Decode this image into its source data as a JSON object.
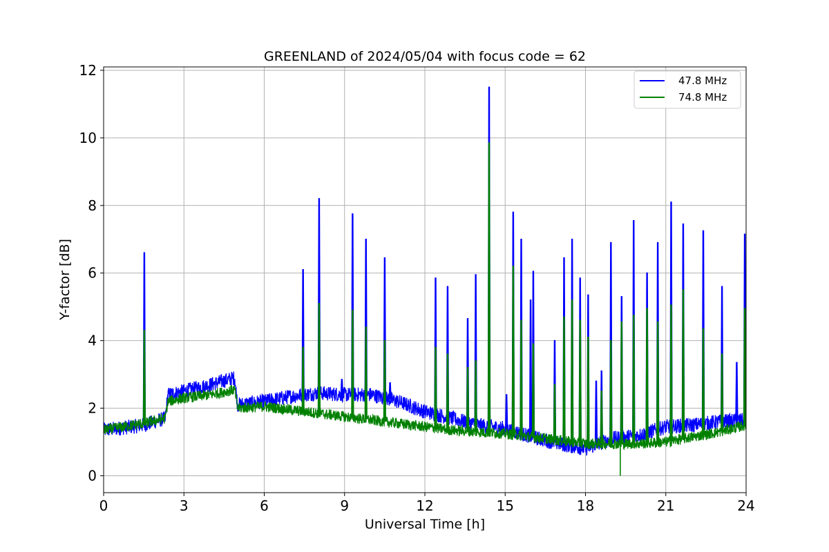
{
  "chart_data": {
    "type": "line",
    "title": "GREENLAND of 2024/05/04 with focus code = 62",
    "xlabel": "Universal Time [h]",
    "ylabel": "Y-factor [dB]",
    "xlim": [
      0,
      24
    ],
    "ylim": [
      -0.5,
      12.1
    ],
    "xticks": [
      "0",
      "3",
      "6",
      "9",
      "12",
      "15",
      "18",
      "21",
      "24"
    ],
    "yticks": [
      "0",
      "2",
      "4",
      "6",
      "8",
      "10",
      "12"
    ],
    "grid": true,
    "legend_position": "top-right",
    "series": [
      {
        "name": "47.8 MHz",
        "color": "#0000ff",
        "baseline": [
          [
            0,
            1.35
          ],
          [
            1.5,
            1.5
          ],
          [
            2.3,
            1.7
          ],
          [
            2.4,
            2.4
          ],
          [
            3,
            2.5
          ],
          [
            4,
            2.7
          ],
          [
            4.9,
            2.9
          ],
          [
            5.0,
            2.1
          ],
          [
            6,
            2.2
          ],
          [
            7,
            2.35
          ],
          [
            8,
            2.45
          ],
          [
            9,
            2.4
          ],
          [
            10,
            2.4
          ],
          [
            11,
            2.2
          ],
          [
            12,
            1.9
          ],
          [
            13,
            1.7
          ],
          [
            14,
            1.5
          ],
          [
            15,
            1.4
          ],
          [
            16,
            1.15
          ],
          [
            17,
            0.95
          ],
          [
            18,
            0.8
          ],
          [
            19,
            1.1
          ],
          [
            20,
            1.2
          ],
          [
            21,
            1.45
          ],
          [
            22,
            1.5
          ],
          [
            23,
            1.6
          ],
          [
            24,
            1.65
          ]
        ],
        "spikes": [
          [
            1.52,
            6.6
          ],
          [
            7.45,
            6.1
          ],
          [
            8.05,
            8.2
          ],
          [
            8.9,
            2.85
          ],
          [
            9.3,
            7.75
          ],
          [
            9.8,
            7.0
          ],
          [
            10.5,
            6.45
          ],
          [
            10.7,
            2.75
          ],
          [
            12.4,
            5.85
          ],
          [
            12.85,
            5.6
          ],
          [
            13.6,
            4.65
          ],
          [
            13.9,
            5.95
          ],
          [
            14.4,
            11.5
          ],
          [
            15.05,
            2.4
          ],
          [
            15.3,
            7.8
          ],
          [
            15.6,
            7.0
          ],
          [
            15.95,
            5.2
          ],
          [
            16.05,
            6.05
          ],
          [
            16.85,
            4.0
          ],
          [
            17.2,
            6.45
          ],
          [
            17.5,
            7.0
          ],
          [
            17.8,
            5.85
          ],
          [
            18.1,
            5.35
          ],
          [
            18.4,
            2.8
          ],
          [
            18.6,
            3.1
          ],
          [
            18.95,
            6.9
          ],
          [
            19.35,
            5.3
          ],
          [
            19.8,
            7.55
          ],
          [
            20.3,
            6.0
          ],
          [
            20.7,
            6.9
          ],
          [
            21.2,
            8.1
          ],
          [
            21.65,
            7.45
          ],
          [
            22.4,
            7.25
          ],
          [
            23.1,
            5.6
          ],
          [
            23.65,
            3.35
          ],
          [
            23.95,
            7.15
          ]
        ]
      },
      {
        "name": "74.8 MHz",
        "color": "#008000",
        "baseline": [
          [
            0,
            1.35
          ],
          [
            1.5,
            1.55
          ],
          [
            2.3,
            1.7
          ],
          [
            2.4,
            2.2
          ],
          [
            3,
            2.3
          ],
          [
            4,
            2.4
          ],
          [
            4.9,
            2.55
          ],
          [
            5.0,
            2.0
          ],
          [
            6,
            2.05
          ],
          [
            7,
            1.95
          ],
          [
            8,
            1.85
          ],
          [
            9,
            1.75
          ],
          [
            10,
            1.65
          ],
          [
            11,
            1.55
          ],
          [
            12,
            1.45
          ],
          [
            13,
            1.35
          ],
          [
            14,
            1.3
          ],
          [
            15,
            1.25
          ],
          [
            16,
            1.15
          ],
          [
            17,
            1.05
          ],
          [
            18,
            0.95
          ],
          [
            19,
            0.95
          ],
          [
            20,
            0.95
          ],
          [
            21,
            1.0
          ],
          [
            22,
            1.15
          ],
          [
            23,
            1.3
          ],
          [
            24,
            1.5
          ]
        ],
        "spikes": [
          [
            1.52,
            4.3
          ],
          [
            7.45,
            3.8
          ],
          [
            8.05,
            5.1
          ],
          [
            9.3,
            4.9
          ],
          [
            9.8,
            4.4
          ],
          [
            10.5,
            4.0
          ],
          [
            12.4,
            3.8
          ],
          [
            12.85,
            3.6
          ],
          [
            13.6,
            3.2
          ],
          [
            13.9,
            3.4
          ],
          [
            14.4,
            9.85
          ],
          [
            15.3,
            6.2
          ],
          [
            15.6,
            4.6
          ],
          [
            16.05,
            3.9
          ],
          [
            16.85,
            2.7
          ],
          [
            17.2,
            4.7
          ],
          [
            17.5,
            5.2
          ],
          [
            17.8,
            4.6
          ],
          [
            18.1,
            4.1
          ],
          [
            18.6,
            2.5
          ],
          [
            18.95,
            4.0
          ],
          [
            19.35,
            4.55
          ],
          [
            19.8,
            4.75
          ],
          [
            20.3,
            4.95
          ],
          [
            20.7,
            4.55
          ],
          [
            21.2,
            5.05
          ],
          [
            21.65,
            5.5
          ],
          [
            22.4,
            4.35
          ],
          [
            23.1,
            3.6
          ],
          [
            23.95,
            4.95
          ]
        ],
        "dips": [
          [
            19.3,
            0.0
          ]
        ]
      }
    ]
  }
}
